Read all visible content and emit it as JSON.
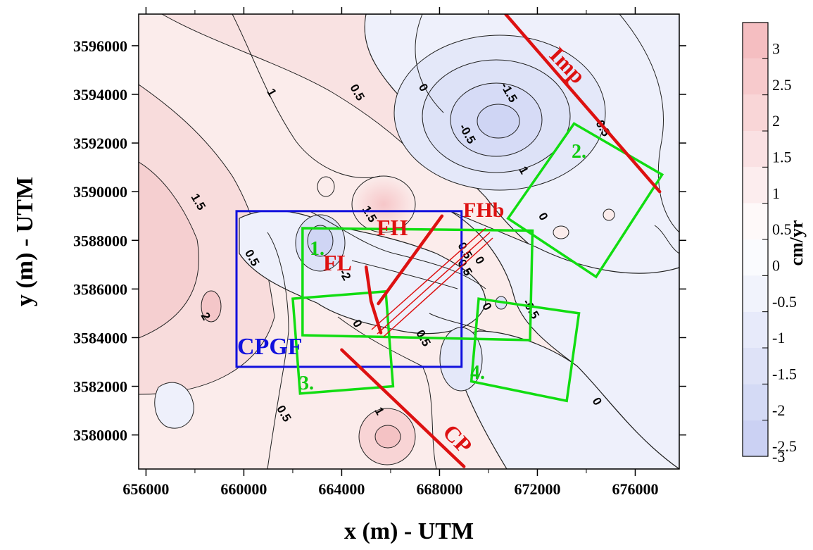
{
  "chart_data": {
    "type": "contour",
    "xlabel": "x (m) - UTM",
    "ylabel": "y (m) - UTM",
    "xlim": [
      655700,
      677800
    ],
    "ylim": [
      3578600,
      3597300
    ],
    "x_ticks": [
      "656000",
      "660000",
      "664000",
      "668000",
      "672000",
      "676000"
    ],
    "y_ticks": [
      "3580000",
      "3582000",
      "3584000",
      "3586000",
      "3588000",
      "3590000",
      "3592000",
      "3594000",
      "3596000"
    ],
    "colorbar": {
      "title": "cm/yr",
      "levels": [
        "3",
        "2.5",
        "2",
        "1.5",
        "1",
        "0.5",
        "0",
        "-0.5",
        "-1",
        "-1.5",
        "-2",
        "-2.5",
        "-3"
      ],
      "positive_color": "#f4b8bb",
      "negative_color": "#c6cdf2"
    },
    "contour_labels": [
      {
        "text": "1",
        "x": 661000,
        "y": 3594000
      },
      {
        "text": "0.5",
        "x": 664500,
        "y": 3594000
      },
      {
        "text": "0",
        "x": 667200,
        "y": 3594200
      },
      {
        "text": "-1.5",
        "x": 670700,
        "y": 3594000
      },
      {
        "text": "-0.5",
        "x": 669000,
        "y": 3592300
      },
      {
        "text": "-0.5",
        "x": 674500,
        "y": 3592600
      },
      {
        "text": "1",
        "x": 671300,
        "y": 3590800
      },
      {
        "text": "1.5",
        "x": 658000,
        "y": 3589500
      },
      {
        "text": "0",
        "x": 672100,
        "y": 3588900
      },
      {
        "text": "0.5",
        "x": 660200,
        "y": 3587200
      },
      {
        "text": "0.5",
        "x": 668900,
        "y": 3587500
      },
      {
        "text": "0.5",
        "x": 668900,
        "y": 3586800
      },
      {
        "text": "0",
        "x": 669500,
        "y": 3587100
      },
      {
        "text": "2",
        "x": 658300,
        "y": 3584800
      },
      {
        "text": "0",
        "x": 669800,
        "y": 3585200
      },
      {
        "text": "-0.5",
        "x": 671600,
        "y": 3585100
      },
      {
        "text": "0",
        "x": 664500,
        "y": 3584500
      },
      {
        "text": "0.5",
        "x": 667200,
        "y": 3583900
      },
      {
        "text": "0.5",
        "x": 661500,
        "y": 3580800
      },
      {
        "text": "1",
        "x": 665400,
        "y": 3580900
      },
      {
        "text": "0",
        "x": 674300,
        "y": 3581300
      },
      {
        "text": "1.5",
        "x": 665000,
        "y": 3589000
      },
      {
        "text": "-2",
        "x": 664000,
        "y": 3586500
      }
    ],
    "annotations": [
      {
        "text": "Imp",
        "color": "#dd1111"
      },
      {
        "text": "FH",
        "color": "#dd1111"
      },
      {
        "text": "FHb",
        "color": "#dd1111"
      },
      {
        "text": "FL",
        "color": "#dd1111"
      },
      {
        "text": "CP",
        "color": "#dd1111"
      },
      {
        "text": "CPGF",
        "color": "#1010dd"
      },
      {
        "text": "1.",
        "color": "#11cc11"
      },
      {
        "text": "2.",
        "color": "#11cc11"
      },
      {
        "text": "3.",
        "color": "#11cc11"
      },
      {
        "text": "4.",
        "color": "#11cc11"
      }
    ],
    "features": {
      "cpgf_box": {
        "x": [
          659700,
          668900
        ],
        "y": [
          3582800,
          3589200
        ],
        "color": "#1010dd"
      },
      "study_boxes": [
        {
          "label": "1.",
          "corners": [
            [
              662400,
              3588500
            ],
            [
              671800,
              3588400
            ],
            [
              671700,
              3583900
            ],
            [
              662400,
              3584100
            ]
          ]
        },
        {
          "label": "2.",
          "corners": [
            [
              673500,
              3592800
            ],
            [
              677100,
              3590700
            ],
            [
              674400,
              3586500
            ],
            [
              670800,
              3588900
            ]
          ]
        },
        {
          "label": "3.",
          "corners": [
            [
              662000,
              3585600
            ],
            [
              665800,
              3585900
            ],
            [
              666100,
              3582000
            ],
            [
              662300,
              3581700
            ]
          ]
        },
        {
          "label": "4.",
          "corners": [
            [
              669600,
              3585600
            ],
            [
              673700,
              3585000
            ],
            [
              673200,
              3581400
            ],
            [
              669300,
              3582200
            ]
          ]
        }
      ],
      "faults": [
        {
          "name": "Imp",
          "points": [
            [
              670700,
              3597300
            ],
            [
              677000,
              3590000
            ]
          ]
        },
        {
          "name": "CP",
          "points": [
            [
              664000,
              3583500
            ],
            [
              669000,
              3578700
            ]
          ]
        },
        {
          "name": "FH",
          "points": [
            [
              665500,
              3585400
            ],
            [
              668100,
              3589000
            ]
          ]
        },
        {
          "name": "FL",
          "points": [
            [
              665000,
              3586900
            ],
            [
              665200,
              3585500
            ],
            [
              665600,
              3584200
            ]
          ]
        }
      ]
    }
  }
}
